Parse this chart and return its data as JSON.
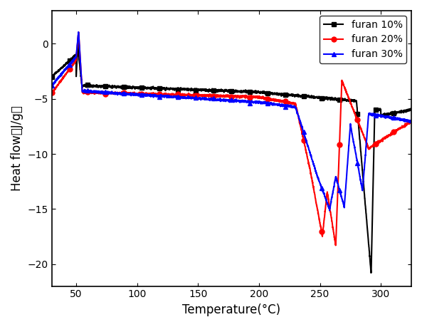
{
  "title": "",
  "xlabel": "Temperature(°C)",
  "ylabel": "Heat flow（J/g）",
  "xlim": [
    30,
    325
  ],
  "ylim": [
    -22,
    3
  ],
  "xticks": [
    50,
    100,
    150,
    200,
    250,
    300
  ],
  "yticks": [
    0,
    -5,
    -10,
    -15,
    -20
  ],
  "legend": [
    "furan 10%",
    "furan 20%",
    "furan 30%"
  ],
  "colors": [
    "black",
    "red",
    "blue"
  ],
  "background": "#ffffff",
  "figsize": [
    5.93,
    4.59
  ],
  "dpi": 100
}
